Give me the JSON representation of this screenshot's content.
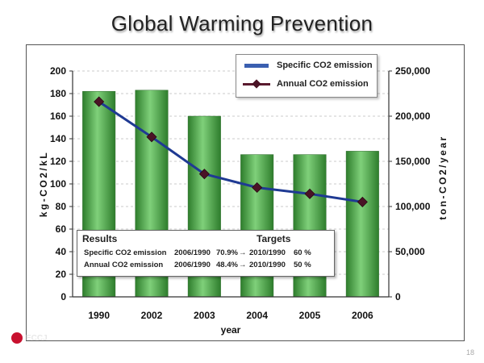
{
  "slide": {
    "title": "Global Warming Prevention",
    "page_number": "18",
    "logo_text": "ECCJ"
  },
  "colors": {
    "bar_green": "#3f9a3c",
    "bar_green_light": "#7fd07a",
    "line": "#1f3a93",
    "marker": "#4a1326"
  },
  "results": {
    "results_label": "Results",
    "targets_label": "Targets",
    "rows": [
      {
        "item": "Specific CO2 emission",
        "period": "2006/1990",
        "value": "70.9%",
        "arrow": "→",
        "target_period": "2010/1990",
        "target_value": "60 %"
      },
      {
        "item": "Annual CO2 emission",
        "period": "2006/1990",
        "value": "48.4%",
        "arrow": "→",
        "target_period": "2010/1990",
        "target_value": "50 %"
      }
    ]
  },
  "chart_data": {
    "type": "bar",
    "title": "Global Warming Prevention",
    "xlabel": "year",
    "ylabel": "kg-CO2/kL",
    "y2label": "ton-CO2/year",
    "categories": [
      "1990",
      "2002",
      "2003",
      "2004",
      "2005",
      "2006"
    ],
    "ylim": [
      0,
      200
    ],
    "yticks": [
      "0",
      "20",
      "40",
      "60",
      "80",
      "100",
      "120",
      "140",
      "160",
      "180",
      "200"
    ],
    "y2lim": [
      0,
      250000
    ],
    "y2ticks": [
      "0",
      "50,000",
      "100,000",
      "150,000",
      "200,000",
      "250,000"
    ],
    "grid": true,
    "legend_position": "top-right",
    "series": [
      {
        "name": "Specific CO2 emission",
        "type": "bar",
        "axis": "left",
        "values": [
          182,
          183,
          160,
          126,
          126,
          129
        ]
      },
      {
        "name": "Annual CO2 emission",
        "type": "line",
        "axis": "right",
        "values": [
          216000,
          177000,
          136000,
          121000,
          114000,
          105000
        ]
      }
    ]
  }
}
